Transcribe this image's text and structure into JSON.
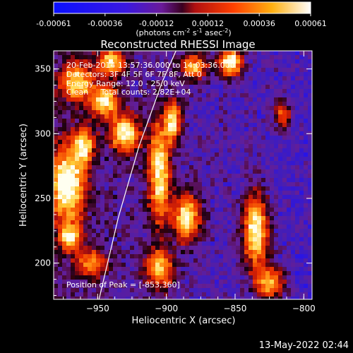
{
  "colorbar": {
    "ticks": [
      "-0.00061",
      "-0.00036",
      "-0.00012",
      "0.00012",
      "0.00036",
      "0.00061"
    ],
    "units_prefix": "(photons cm",
    "units_exp1": "-2",
    "units_mid": " s",
    "units_exp2": "-1",
    "units_mid2": " asec",
    "units_exp3": "-2",
    "units_suffix": ")"
  },
  "annotations": {
    "time_range": "20-Feb-2014 13:57:36.000 to 14:03:36.000",
    "detectors": "Detectors: 3F 4F 5F 6F 7F 8F, Att 0",
    "energy": "Energy Range: 12.0 - 25.0 keV",
    "clean": "Clean     Total counts: 2.82E+04",
    "peak": "Position of Peak = [-853,360]"
  },
  "footer_timestamp": "13-May-2022 02:44",
  "chart_data": {
    "type": "heatmap",
    "title": "Reconstructed RHESSI Image",
    "xlabel": "Heliocentric X (arcsec)",
    "ylabel": "Heliocentric Y (arcsec)",
    "xlim": [
      -982,
      -794
    ],
    "ylim": [
      172,
      364
    ],
    "xticks": [
      -950,
      -900,
      -850,
      -800
    ],
    "yticks": [
      200,
      250,
      300,
      350
    ],
    "color_scale": {
      "min": -0.00061,
      "max": 0.00061,
      "palette": "blue-purple-red-orange-yellow-white"
    },
    "bright_regions": [
      {
        "x": -972,
        "y": 260,
        "rx": 12,
        "ry": 28,
        "level": 1.0
      },
      {
        "x": -960,
        "y": 290,
        "rx": 8,
        "ry": 15,
        "level": 0.7
      },
      {
        "x": -930,
        "y": 300,
        "rx": 10,
        "ry": 14,
        "level": 0.9
      },
      {
        "x": -945,
        "y": 325,
        "rx": 10,
        "ry": 12,
        "level": 0.8
      },
      {
        "x": -965,
        "y": 340,
        "rx": 12,
        "ry": 15,
        "level": 0.75
      },
      {
        "x": -940,
        "y": 355,
        "rx": 10,
        "ry": 10,
        "level": 0.8
      },
      {
        "x": -905,
        "y": 270,
        "rx": 8,
        "ry": 40,
        "level": 0.85
      },
      {
        "x": -895,
        "y": 310,
        "rx": 6,
        "ry": 15,
        "level": 0.8
      },
      {
        "x": -885,
        "y": 235,
        "rx": 10,
        "ry": 18,
        "level": 0.85
      },
      {
        "x": -905,
        "y": 195,
        "rx": 10,
        "ry": 15,
        "level": 0.7
      },
      {
        "x": -835,
        "y": 225,
        "rx": 9,
        "ry": 28,
        "level": 0.95
      },
      {
        "x": -825,
        "y": 185,
        "rx": 10,
        "ry": 12,
        "level": 0.75
      },
      {
        "x": -853,
        "y": 355,
        "rx": 8,
        "ry": 10,
        "level": 1.0
      },
      {
        "x": -880,
        "y": 352,
        "rx": 10,
        "ry": 10,
        "level": 0.7
      },
      {
        "x": -815,
        "y": 315,
        "rx": 6,
        "ry": 10,
        "level": 0.55
      },
      {
        "x": -955,
        "y": 200,
        "rx": 12,
        "ry": 10,
        "level": 0.6
      },
      {
        "x": -970,
        "y": 220,
        "rx": 8,
        "ry": 10,
        "level": 0.7
      }
    ],
    "limb_curve": [
      {
        "x": -949,
        "y": 172
      },
      {
        "x": -935,
        "y": 235
      },
      {
        "x": -920,
        "y": 290
      },
      {
        "x": -903,
        "y": 340
      },
      {
        "x": -893,
        "y": 364
      }
    ]
  }
}
